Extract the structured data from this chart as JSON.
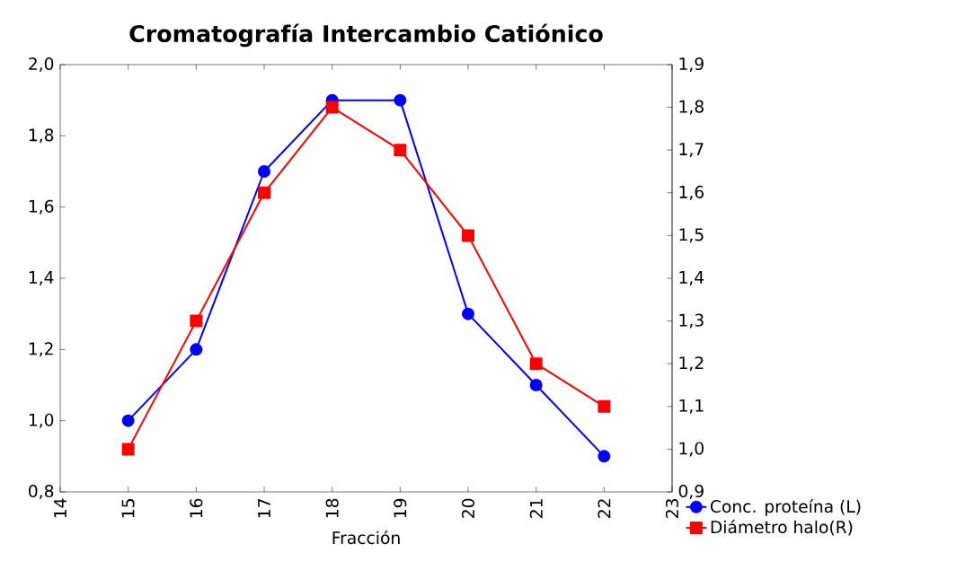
{
  "chart_data": {
    "type": "line",
    "title": "Cromatografía Intercambio Catiónico",
    "xlabel": "Fracción",
    "x": [
      15,
      16,
      17,
      18,
      19,
      20,
      21,
      22
    ],
    "series": [
      {
        "name": "Conc. proteína (L)",
        "color": "#0000ff",
        "marker": "circle",
        "values": [
          1.0,
          1.2,
          1.7,
          1.9,
          1.9,
          1.3,
          1.1,
          0.9
        ]
      },
      {
        "name": "Diámetro halo(R)",
        "color": "#ff0000",
        "marker": "square",
        "axis": "y2",
        "values": [
          1.0,
          1.3,
          1.6,
          1.8,
          1.7,
          1.5,
          1.2,
          1.1
        ]
      }
    ],
    "xlim": [
      14,
      23
    ],
    "xticks": [
      14,
      15,
      16,
      17,
      18,
      19,
      20,
      21,
      22,
      23
    ],
    "ylim": [
      0.8,
      2.0
    ],
    "yticks": [
      {
        "value": 0.8,
        "label": "0,8"
      },
      {
        "value": 1.0,
        "label": "1,0"
      },
      {
        "value": 1.2,
        "label": "1,2"
      },
      {
        "value": 1.4,
        "label": "1,4"
      },
      {
        "value": 1.6,
        "label": "1,6"
      },
      {
        "value": 1.8,
        "label": "1,8"
      },
      {
        "value": 2.0,
        "label": "2,0"
      }
    ],
    "y2lim": [
      0.9,
      1.9
    ],
    "y2ticks": [
      {
        "value": 0.9,
        "label": "0,9"
      },
      {
        "value": 1.0,
        "label": "1,0"
      },
      {
        "value": 1.1,
        "label": "1,1"
      },
      {
        "value": 1.2,
        "label": "1,2"
      },
      {
        "value": 1.3,
        "label": "1,3"
      },
      {
        "value": 1.4,
        "label": "1,4"
      },
      {
        "value": 1.5,
        "label": "1,5"
      },
      {
        "value": 1.6,
        "label": "1,6"
      },
      {
        "value": 1.7,
        "label": "1,7"
      },
      {
        "value": 1.8,
        "label": "1,8"
      },
      {
        "value": 1.9,
        "label": "1,9"
      }
    ],
    "grid": false,
    "legend": "bottom right",
    "line_style": "solid"
  }
}
